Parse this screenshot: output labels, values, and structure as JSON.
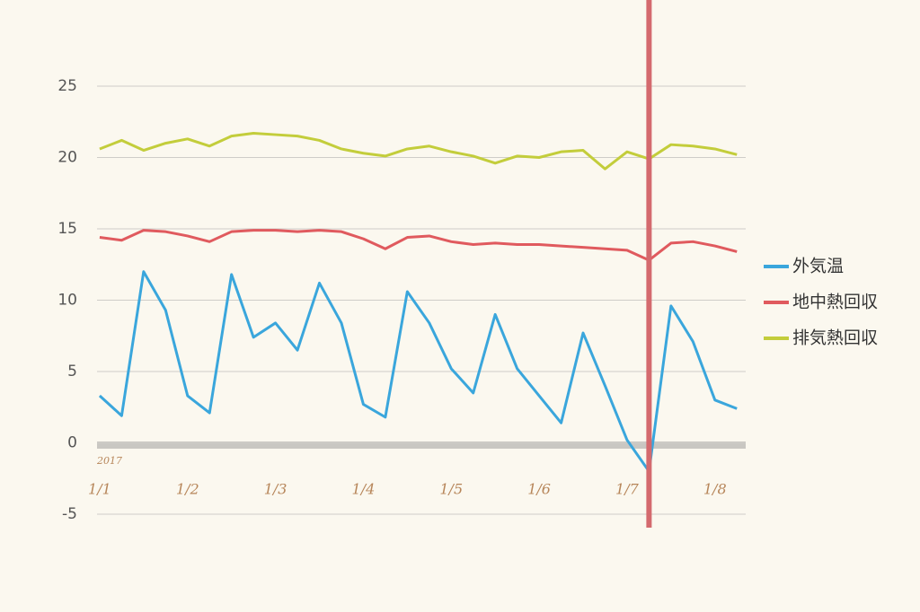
{
  "chart_data": {
    "type": "line",
    "annotation": "2017",
    "x": [
      1,
      1.25,
      1.5,
      1.75,
      2,
      2.25,
      2.5,
      2.75,
      3,
      3.25,
      3.5,
      3.75,
      4,
      4.25,
      4.5,
      4.75,
      5,
      5.25,
      5.5,
      5.75,
      6,
      6.25,
      6.5,
      6.75,
      7,
      7.25,
      7.5,
      7.75,
      8,
      8.25
    ],
    "series": [
      {
        "name": "外気温",
        "color": "#3aa6dc",
        "values": [
          3.3,
          1.9,
          12,
          9.3,
          3.3,
          2.1,
          11.8,
          7.4,
          8.4,
          6.5,
          11.2,
          8.4,
          2.7,
          1.8,
          10.6,
          8.4,
          5.2,
          3.5,
          9,
          5.2,
          3.3,
          1.4,
          7.7,
          4,
          0.2,
          -2,
          9.6,
          7.1,
          3,
          2.4
        ]
      },
      {
        "name": "地中熱回収",
        "color": "#e05a5e",
        "values": [
          14.4,
          14.2,
          14.9,
          14.8,
          14.5,
          14.1,
          14.8,
          14.9,
          14.9,
          14.8,
          14.9,
          14.8,
          14.3,
          13.6,
          14.4,
          14.5,
          14.1,
          13.9,
          14,
          13.9,
          13.9,
          13.8,
          13.7,
          13.6,
          13.5,
          12.8,
          14,
          14.1,
          13.8,
          13.4
        ]
      },
      {
        "name": "排気熱回収",
        "color": "#c3cd3b",
        "values": [
          20.6,
          21.2,
          20.5,
          21,
          21.3,
          20.8,
          21.5,
          21.7,
          21.6,
          21.5,
          21.2,
          20.6,
          20.3,
          20.1,
          20.6,
          20.8,
          20.4,
          20.1,
          19.6,
          20.1,
          20,
          20.4,
          20.5,
          19.2,
          20.4,
          19.9,
          20.9,
          20.8,
          20.6,
          20.2
        ]
      }
    ],
    "xlim": [
      0.97,
      8.35
    ],
    "xticks": [
      {
        "value": 1,
        "label": "1/1"
      },
      {
        "value": 2,
        "label": "1/2"
      },
      {
        "value": 3,
        "label": "1/3"
      },
      {
        "value": 4,
        "label": "1/4"
      },
      {
        "value": 5,
        "label": "1/5"
      },
      {
        "value": 6,
        "label": "1/6"
      },
      {
        "value": 7,
        "label": "1/7"
      },
      {
        "value": 8,
        "label": "1/8"
      }
    ],
    "ylim": [
      -5,
      25
    ],
    "yticks": [
      -5,
      0,
      5,
      10,
      15,
      20,
      25
    ],
    "marker_x": 7.25,
    "marker_color": "#d46a6e",
    "grid": true,
    "legend": "right"
  }
}
